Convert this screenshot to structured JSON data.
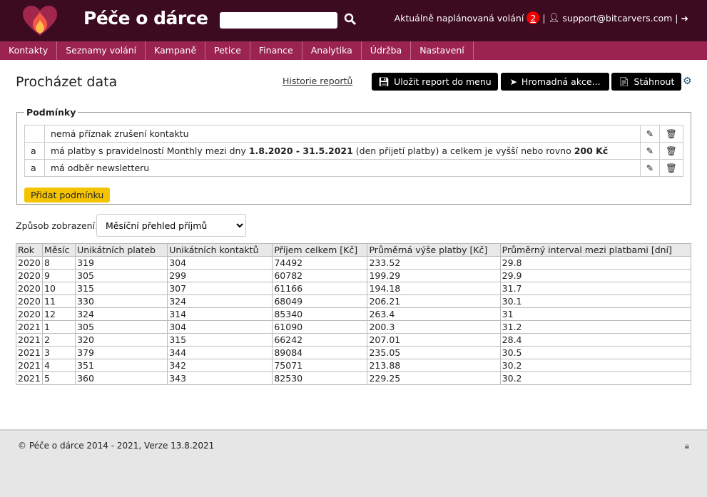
{
  "header": {
    "title": "Péče o dárce",
    "search_value": "",
    "scheduled_label": "Aktuálně naplánovaná volání",
    "scheduled_count": "2",
    "user_email": "support@bitcarvers.com",
    "sep": "|"
  },
  "nav": [
    "Kontakty",
    "Seznamy volání",
    "Kampaně",
    "Petice",
    "Finance",
    "Analytika",
    "Údržba",
    "Nastavení"
  ],
  "page": {
    "title": "Procházet data",
    "history_link": "Historie reportů",
    "save_btn": "Uložit report do menu",
    "bulk_btn": "Hromadná akce...",
    "download_btn": "Stáhnout"
  },
  "conditions": {
    "legend": "Podmínky",
    "rows": [
      {
        "op": "",
        "parts": [
          {
            "t": "nemá příznak zrušení kontaktu"
          }
        ]
      },
      {
        "op": "a",
        "parts": [
          {
            "t": "má platby s pravidelností Monthly mezi dny "
          },
          {
            "t": "1.8.2020 - 31.5.2021",
            "b": true
          },
          {
            "t": " (den přijetí platby) a celkem je vyšší nebo rovno "
          },
          {
            "t": "200 Kč",
            "b": true
          }
        ]
      },
      {
        "op": "a",
        "parts": [
          {
            "t": "má odběr newsletteru"
          }
        ]
      }
    ],
    "add_btn": "Přidat podmínku"
  },
  "display": {
    "label": "Způsob zobrazení:",
    "selected": "Měsíční přehled příjmů"
  },
  "table": {
    "columns": [
      "Rok",
      "Měsíc",
      "Unikátních plateb",
      "Unikátních kontaktů",
      "Příjem celkem [Kč]",
      "Průměrná výše platby [Kč]",
      "Průměrný interval mezi platbami [dní]"
    ],
    "rows": [
      [
        "2020",
        "8",
        "319",
        "304",
        "74492",
        "233.52",
        "29.8"
      ],
      [
        "2020",
        "9",
        "305",
        "299",
        "60782",
        "199.29",
        "29.9"
      ],
      [
        "2020",
        "10",
        "315",
        "307",
        "61166",
        "194.18",
        "31.7"
      ],
      [
        "2020",
        "11",
        "330",
        "324",
        "68049",
        "206.21",
        "30.1"
      ],
      [
        "2020",
        "12",
        "324",
        "314",
        "85340",
        "263.4",
        "31"
      ],
      [
        "2021",
        "1",
        "305",
        "304",
        "61090",
        "200.3",
        "31.2"
      ],
      [
        "2021",
        "2",
        "320",
        "315",
        "66242",
        "207.01",
        "28.4"
      ],
      [
        "2021",
        "3",
        "379",
        "344",
        "89084",
        "235.05",
        "30.5"
      ],
      [
        "2021",
        "4",
        "351",
        "342",
        "75071",
        "213.88",
        "30.2"
      ],
      [
        "2021",
        "5",
        "360",
        "343",
        "82530",
        "229.25",
        "30.2"
      ]
    ]
  },
  "footer": {
    "text": "© Péče o dárce 2014 - 2021, Verze 13.8.2021"
  }
}
